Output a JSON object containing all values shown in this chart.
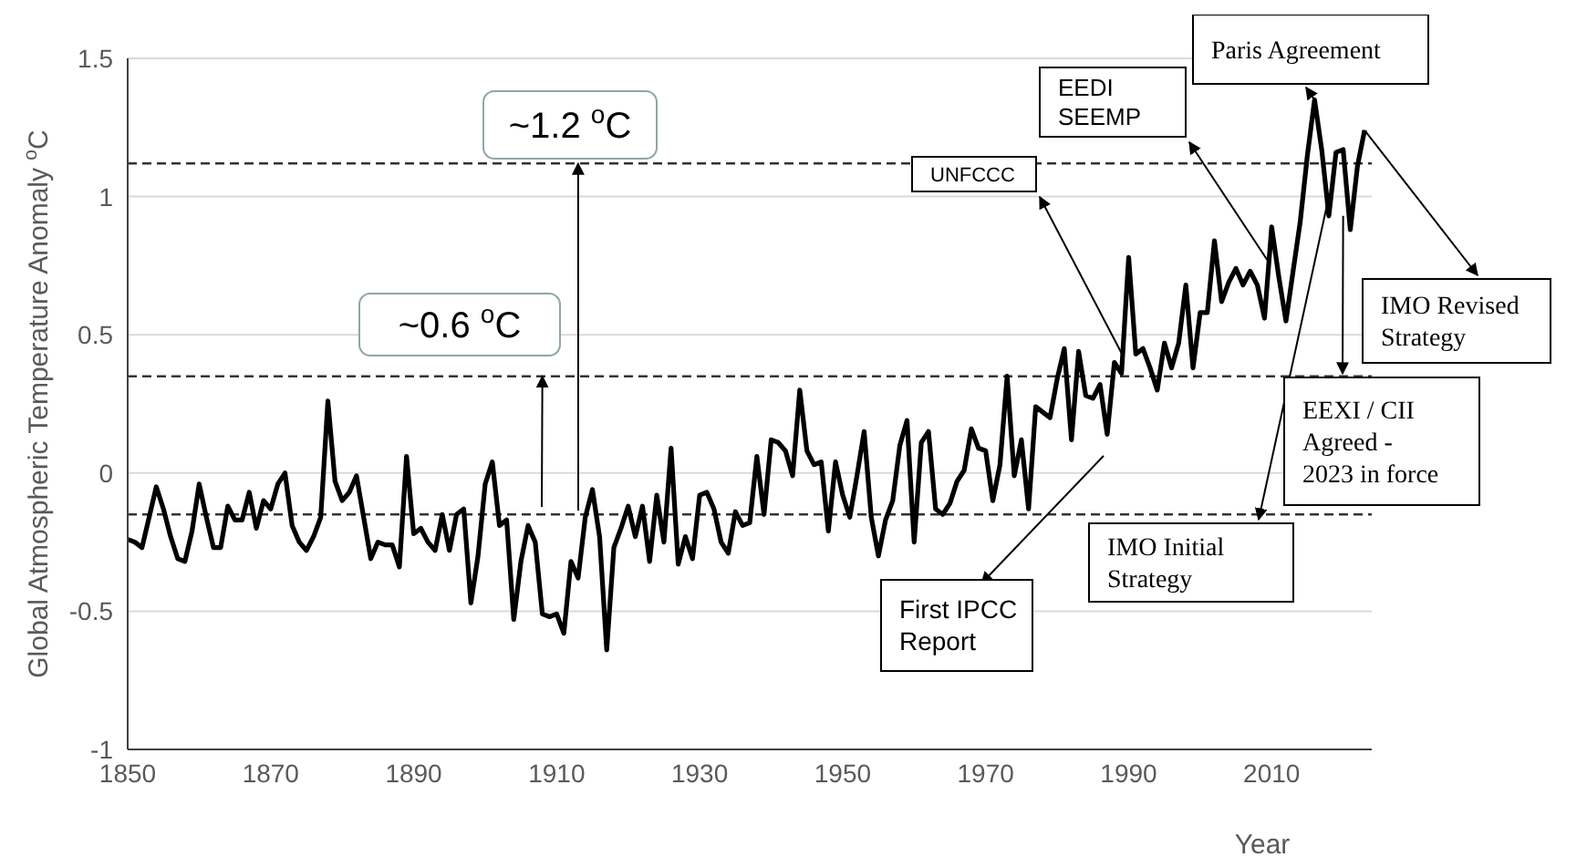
{
  "chart_data": {
    "type": "line",
    "xlabel": "Year",
    "ylabel": "Global Atmospheric Temperature Anomaly $^{o}$C",
    "x": [
      1850,
      1851,
      1852,
      1853,
      1854,
      1855,
      1856,
      1857,
      1858,
      1859,
      1860,
      1861,
      1862,
      1863,
      1864,
      1865,
      1866,
      1867,
      1868,
      1869,
      1870,
      1871,
      1872,
      1873,
      1874,
      1875,
      1876,
      1877,
      1878,
      1879,
      1880,
      1881,
      1882,
      1883,
      1884,
      1885,
      1886,
      1887,
      1888,
      1889,
      1890,
      1891,
      1892,
      1893,
      1894,
      1895,
      1896,
      1897,
      1898,
      1899,
      1900,
      1901,
      1902,
      1903,
      1904,
      1905,
      1906,
      1907,
      1908,
      1909,
      1910,
      1911,
      1912,
      1913,
      1914,
      1915,
      1916,
      1917,
      1918,
      1919,
      1920,
      1921,
      1922,
      1923,
      1924,
      1925,
      1926,
      1927,
      1928,
      1929,
      1930,
      1931,
      1932,
      1933,
      1934,
      1935,
      1936,
      1937,
      1938,
      1939,
      1940,
      1941,
      1942,
      1943,
      1944,
      1945,
      1946,
      1947,
      1948,
      1949,
      1950,
      1951,
      1952,
      1953,
      1954,
      1955,
      1956,
      1957,
      1958,
      1959,
      1960,
      1961,
      1962,
      1963,
      1964,
      1965,
      1966,
      1967,
      1968,
      1969,
      1970,
      1971,
      1972,
      1973,
      1974,
      1975,
      1976,
      1977,
      1978,
      1979,
      1980,
      1981,
      1982,
      1983,
      1984,
      1985,
      1986,
      1987,
      1988,
      1989,
      1990,
      1991,
      1992,
      1993,
      1994,
      1995,
      1996,
      1997,
      1998,
      1999,
      2000,
      2001,
      2002,
      2003,
      2004,
      2005,
      2006,
      2007,
      2008,
      2009,
      2010,
      2011,
      2012,
      2013,
      2014,
      2015,
      2016,
      2017,
      2018,
      2019,
      2020,
      2021,
      2022,
      2023
    ],
    "series": [
      {
        "color": "#000000",
        "values": [
          -0.24,
          -0.25,
          -0.27,
          -0.16,
          -0.05,
          -0.13,
          -0.23,
          -0.31,
          -0.32,
          -0.21,
          -0.04,
          -0.16,
          -0.27,
          -0.27,
          -0.12,
          -0.17,
          -0.17,
          -0.07,
          -0.2,
          -0.1,
          -0.13,
          -0.04,
          0,
          -0.19,
          -0.25,
          -0.28,
          -0.23,
          -0.16,
          0.26,
          -0.03,
          -0.1,
          -0.07,
          -0.01,
          -0.16,
          -0.31,
          -0.25,
          -0.26,
          -0.26,
          -0.34,
          0.06,
          -0.22,
          -0.2,
          -0.25,
          -0.28,
          -0.15,
          -0.28,
          -0.15,
          -0.13,
          -0.47,
          -0.3,
          -0.04,
          0.04,
          -0.19,
          -0.17,
          -0.53,
          -0.32,
          -0.19,
          -0.25,
          -0.51,
          -0.52,
          -0.51,
          -0.58,
          -0.32,
          -0.38,
          -0.16,
          -0.06,
          -0.23,
          -0.64,
          -0.27,
          -0.2,
          -0.12,
          -0.23,
          -0.12,
          -0.32,
          -0.08,
          -0.25,
          0.09,
          -0.33,
          -0.23,
          -0.31,
          -0.08,
          -0.07,
          -0.13,
          -0.25,
          -0.29,
          -0.14,
          -0.19,
          -0.18,
          0.06,
          -0.15,
          0.12,
          0.11,
          0.08,
          -0.01,
          0.3,
          0.08,
          0.03,
          0.04,
          -0.21,
          0.04,
          -0.08,
          -0.16,
          -0.01,
          0.15,
          -0.16,
          -0.3,
          -0.17,
          -0.1,
          0.1,
          0.19,
          -0.25,
          0.11,
          0.15,
          -0.13,
          -0.15,
          -0.11,
          -0.03,
          0.01,
          0.16,
          0.09,
          0.08,
          -0.1,
          0.03,
          0.35,
          -0.01,
          0.12,
          -0.13,
          0.24,
          0.22,
          0.2,
          0.34,
          0.45,
          0.12,
          0.44,
          0.28,
          0.27,
          0.32,
          0.14,
          0.4,
          0.36,
          0.78,
          0.43,
          0.45,
          0.38,
          0.3,
          0.47,
          0.38,
          0.47,
          0.68,
          0.38,
          0.58,
          0.58,
          0.84,
          0.62,
          0.69,
          0.74,
          0.68,
          0.73,
          0.68,
          0.56,
          0.89,
          0.71,
          0.55,
          0.73,
          0.91,
          1.15,
          1.35,
          1.17,
          0.93,
          1.16,
          1.17,
          0.88,
          1.11,
          1.24
        ]
      }
    ],
    "xlim": [
      1850,
      2024
    ],
    "xticks": [
      1850,
      1870,
      1890,
      1910,
      1930,
      1950,
      1970,
      1990,
      2010
    ],
    "ylim": [
      -1,
      1.5
    ],
    "yticks": [
      -1,
      -0.5,
      0,
      0.5,
      1,
      1.5
    ],
    "grid": "y",
    "marker": "none",
    "line_style": "solid",
    "ref_lines": [
      {
        "axis": "y",
        "value": -0.15,
        "line_style": "dashed",
        "color": "#333333"
      },
      {
        "axis": "y",
        "value": 0.35,
        "line_style": "dashed",
        "color": "#333333"
      },
      {
        "axis": "y",
        "value": 1.12,
        "line_style": "dashed",
        "color": "#333333"
      }
    ],
    "annotations": [
      {
        "text": "~1.2 $^{o}$C",
        "x": 1913,
        "y": 1.12
      },
      {
        "text": "~0.6 $^{o}$C",
        "x": 1908,
        "y": 0.35
      },
      "First IPCC\nReport",
      "UNFCCC",
      "EEDI\nSEEMP",
      {
        "text": "Paris Agreement",
        "x": 2016,
        "y": 1.35
      },
      "IMO Initial\nStrategy",
      {
        "text": "EEXI  / CII\nAgreed -\n2023 in force",
        "x": 2020,
        "y": 0.93
      },
      {
        "text": "IMO Revised\nStrategy",
        "x": 2023,
        "y": 1.24
      }
    ]
  }
}
